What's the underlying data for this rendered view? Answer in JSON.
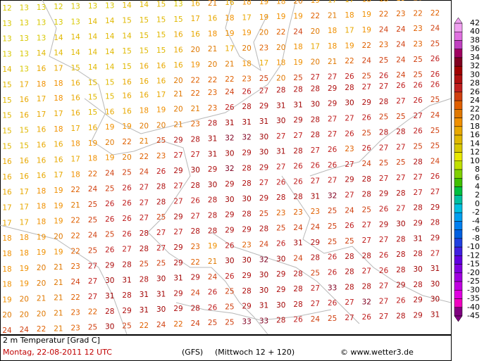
{
  "map": {
    "rows": [
      [
        12,
        13,
        13,
        12,
        13,
        13,
        13,
        14,
        14,
        15,
        13,
        16,
        21,
        16,
        18,
        19,
        18,
        20,
        19,
        17,
        17,
        18,
        18,
        19,
        20,
        22
      ],
      [
        13,
        13,
        13,
        13,
        13,
        14,
        14,
        15,
        15,
        15,
        15,
        17,
        16,
        18,
        17,
        19,
        19,
        19,
        22,
        21,
        18,
        19,
        22,
        23,
        22,
        22
      ],
      [
        13,
        13,
        13,
        14,
        14,
        14,
        14,
        14,
        15,
        15,
        16,
        16,
        18,
        19,
        19,
        20,
        22,
        24,
        20,
        18,
        17,
        19,
        24,
        24,
        23,
        24
      ],
      [
        13,
        13,
        14,
        14,
        14,
        14,
        14,
        15,
        15,
        15,
        16,
        20,
        21,
        17,
        20,
        23,
        20,
        18,
        17,
        18,
        19,
        22,
        23,
        24,
        23,
        25
      ],
      [
        14,
        13,
        16,
        17,
        15,
        14,
        14,
        15,
        16,
        16,
        16,
        19,
        20,
        21,
        18,
        17,
        18,
        19,
        20,
        21,
        22,
        24,
        25,
        24,
        25,
        26
      ],
      [
        15,
        17,
        18,
        18,
        16,
        15,
        15,
        16,
        16,
        16,
        20,
        22,
        22,
        22,
        23,
        25,
        20,
        25,
        27,
        27,
        26,
        25,
        26,
        24,
        25,
        26
      ],
      [
        15,
        16,
        17,
        18,
        16,
        15,
        15,
        16,
        16,
        17,
        21,
        22,
        23,
        24,
        26,
        27,
        28,
        28,
        28,
        29,
        28,
        27,
        27,
        26,
        26,
        26
      ],
      [
        15,
        16,
        17,
        17,
        16,
        15,
        16,
        16,
        18,
        19,
        20,
        21,
        23,
        26,
        28,
        29,
        31,
        31,
        30,
        29,
        30,
        29,
        28,
        27,
        26,
        25
      ],
      [
        15,
        15,
        16,
        18,
        17,
        16,
        19,
        19,
        20,
        20,
        21,
        23,
        28,
        31,
        31,
        31,
        30,
        29,
        28,
        27,
        27,
        26,
        25,
        25,
        27,
        24
      ],
      [
        15,
        15,
        16,
        16,
        18,
        19,
        20,
        22,
        21,
        25,
        29,
        28,
        31,
        32,
        32,
        30,
        27,
        27,
        28,
        27,
        26,
        25,
        28,
        28,
        26,
        25
      ],
      [
        16,
        16,
        16,
        16,
        17,
        18,
        19,
        20,
        22,
        23,
        27,
        27,
        31,
        30,
        29,
        30,
        31,
        28,
        27,
        26,
        23,
        26,
        27,
        27,
        25,
        25
      ],
      [
        16,
        16,
        16,
        17,
        18,
        22,
        24,
        25,
        24,
        26,
        29,
        30,
        29,
        32,
        28,
        29,
        27,
        26,
        26,
        26,
        27,
        24,
        25,
        25,
        28,
        24
      ],
      [
        16,
        17,
        18,
        19,
        22,
        24,
        25,
        26,
        27,
        28,
        27,
        28,
        30,
        29,
        28,
        27,
        26,
        26,
        27,
        27,
        29,
        28,
        27,
        27,
        27,
        26
      ],
      [
        17,
        17,
        18,
        19,
        21,
        25,
        26,
        26,
        27,
        28,
        27,
        26,
        28,
        30,
        30,
        29,
        28,
        28,
        31,
        32,
        27,
        28,
        29,
        28,
        27,
        27
      ],
      [
        17,
        17,
        18,
        19,
        22,
        25,
        26,
        26,
        27,
        25,
        29,
        27,
        28,
        29,
        28,
        25,
        23,
        23,
        23,
        25,
        24,
        25,
        26,
        27,
        28,
        29
      ],
      [
        18,
        18,
        19,
        20,
        22,
        24,
        25,
        26,
        28,
        27,
        27,
        28,
        28,
        29,
        29,
        28,
        25,
        24,
        24,
        25,
        26,
        27,
        29,
        30,
        29,
        28
      ],
      [
        18,
        18,
        19,
        19,
        22,
        25,
        26,
        27,
        28,
        27,
        29,
        23,
        19,
        26,
        23,
        24,
        26,
        31,
        29,
        25,
        25,
        27,
        27,
        28,
        31,
        29
      ],
      [
        18,
        19,
        20,
        21,
        23,
        27,
        29,
        28,
        25,
        25,
        29,
        22,
        21,
        30,
        30,
        32,
        30,
        24,
        28,
        26,
        28,
        28,
        26,
        28,
        28,
        27
      ],
      [
        18,
        19,
        20,
        21,
        24,
        27,
        30,
        31,
        28,
        30,
        31,
        29,
        24,
        26,
        29,
        30,
        29,
        28,
        25,
        26,
        28,
        27,
        26,
        28,
        30,
        31
      ],
      [
        19,
        20,
        21,
        21,
        22,
        27,
        31,
        28,
        31,
        31,
        29,
        24,
        26,
        25,
        28,
        30,
        29,
        28,
        27,
        33,
        28,
        28,
        27,
        29,
        28,
        30
      ],
      [
        20,
        20,
        20,
        21,
        23,
        22,
        28,
        29,
        31,
        30,
        29,
        28,
        26,
        25,
        29,
        31,
        30,
        28,
        27,
        26,
        27,
        32,
        27,
        26,
        29,
        30
      ],
      [
        24,
        24,
        22,
        21,
        23,
        25,
        30,
        25,
        22,
        24,
        22,
        24,
        25,
        25,
        33,
        33,
        28,
        26,
        24,
        25,
        27,
        26,
        27,
        28,
        29,
        31
      ]
    ]
  },
  "colorbar": {
    "labels": [
      42,
      40,
      38,
      36,
      34,
      32,
      30,
      28,
      26,
      24,
      22,
      20,
      18,
      16,
      14,
      12,
      10,
      8,
      6,
      4,
      2,
      0,
      -2,
      -4,
      -6,
      -8,
      -10,
      -12,
      -15,
      -20,
      -25,
      -30,
      -35,
      -40,
      -45
    ],
    "colors": [
      "#f0a0f0",
      "#e070e0",
      "#c040c0",
      "#a00060",
      "#800020",
      "#a00000",
      "#b01010",
      "#c02020",
      "#d04010",
      "#e06000",
      "#e07800",
      "#f09000",
      "#e8a800",
      "#e0b800",
      "#d8c800",
      "#e8e800",
      "#c0e000",
      "#80d000",
      "#40c000",
      "#00c040",
      "#00c0a0",
      "#00c0e0",
      "#00a0f0",
      "#0080f0",
      "#0060e0",
      "#2040e0",
      "#4020e0",
      "#6000e0",
      "#8000e0",
      "#a000e0",
      "#c000e0",
      "#e000e0",
      "#f000c0",
      "#800080"
    ]
  },
  "footer": {
    "title": "2 m Temperatur [Grad C]",
    "date": "Montag, 22-08-2011   12 UTC",
    "model": "(GFS)",
    "run": "(Mittwoch 12 + 120)",
    "credit": "© www.wetter3.de"
  }
}
